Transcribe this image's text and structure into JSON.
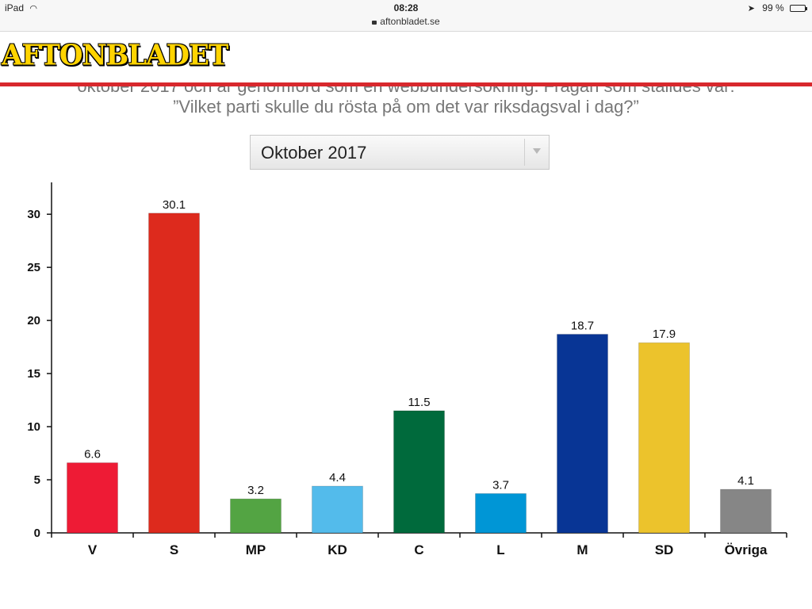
{
  "status_bar": {
    "device": "iPad",
    "time": "08:28",
    "url": "aftonbladet.se",
    "battery": "99 %"
  },
  "header": {
    "logo_text": "AFTONBLADET",
    "brand_yellow": "#ffd400",
    "accent_red": "#d8282d"
  },
  "intro": {
    "line1": "oktober 2017 och är genomförd som en webbundersökning. Frågan som ställdes var:",
    "line2": "”Vilket parti skulle du rösta på om det var riksdagsval i dag?”"
  },
  "period_select": {
    "selected": "Oktober 2017"
  },
  "chart_data": {
    "type": "bar",
    "categories": [
      "V",
      "S",
      "MP",
      "KD",
      "C",
      "L",
      "M",
      "SD",
      "Övriga"
    ],
    "values": [
      6.6,
      30.1,
      3.2,
      4.4,
      11.5,
      3.7,
      18.7,
      17.9,
      4.1
    ],
    "colors": [
      "#ee1b35",
      "#dd2a1d",
      "#53a443",
      "#53bbeb",
      "#006a3c",
      "#0096d6",
      "#083595",
      "#ecc32c",
      "#868686"
    ],
    "yticks": [
      0,
      5,
      10,
      15,
      20,
      25,
      30
    ],
    "ylim": [
      0,
      33
    ],
    "title": "",
    "xlabel": "",
    "ylabel": "",
    "grid": false,
    "data_labels": true
  }
}
